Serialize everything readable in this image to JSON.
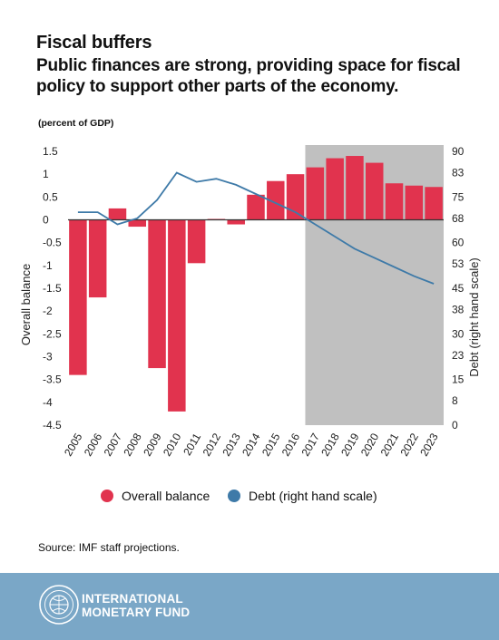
{
  "header": {
    "title": "Fiscal buffers",
    "subtitle": "Public finances are strong, providing space for fiscal policy to support other parts of the economy.",
    "unit": "(percent of GDP)"
  },
  "chart_data": {
    "type": "bar",
    "categories": [
      "2005",
      "2006",
      "2007",
      "2008",
      "2009",
      "2010",
      "2011",
      "2012",
      "2013",
      "2014",
      "2015",
      "2016",
      "2017",
      "2018",
      "2019",
      "2020",
      "2021",
      "2022",
      "2023"
    ],
    "series": [
      {
        "name": "Overall balance",
        "type": "bar",
        "axis": "left",
        "values": [
          -3.4,
          -1.7,
          0.25,
          -0.15,
          -3.25,
          -4.2,
          -0.95,
          0.02,
          -0.1,
          0.55,
          0.85,
          1.0,
          1.15,
          1.35,
          1.4,
          1.25,
          0.8,
          0.75,
          0.72
        ]
      },
      {
        "name": "Debt (right hand scale)",
        "type": "line",
        "axis": "right",
        "values": [
          70,
          70,
          66,
          68,
          74,
          83,
          80,
          81,
          79,
          76,
          73,
          70,
          66,
          62,
          58,
          55,
          52,
          49,
          46.5
        ]
      }
    ],
    "ylabel": "Overall balance",
    "y2label": "Debt (right hand scale)",
    "ylim": [
      -4.5,
      1.5
    ],
    "y2lim": [
      0,
      90
    ],
    "yticks": [
      "1.5",
      "1",
      "0.5",
      "0",
      "-0.5",
      "-1",
      "-1.5",
      "-2",
      "-2.5",
      "-3",
      "-3.5",
      "-4",
      "-4.5"
    ],
    "y2ticks": [
      "90",
      "83",
      "75",
      "68",
      "60",
      "53",
      "45",
      "38",
      "30",
      "23",
      "15",
      "8",
      "0"
    ],
    "projection_start": "2017",
    "colors": {
      "balance": "#e1334e",
      "debt": "#3e7aa8",
      "projection": "#c0c0c0"
    }
  },
  "legend": {
    "balance_label": "Overall balance",
    "debt_label": "Debt (right hand scale)"
  },
  "source": "Source: IMF staff projections.",
  "footer": {
    "org_line1": "INTERNATIONAL",
    "org_line2": "MONETARY FUND",
    "logo": "imf-seal-icon",
    "background": "#7aa7c7"
  }
}
